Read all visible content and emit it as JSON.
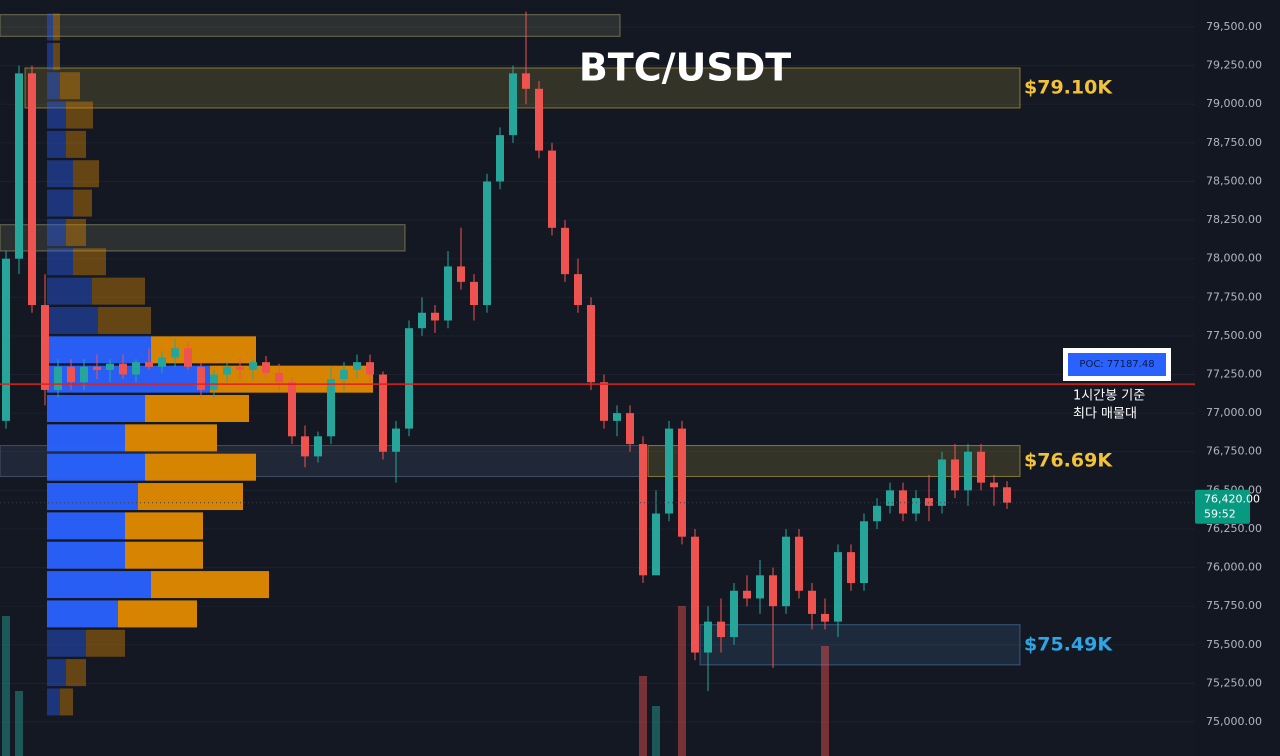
{
  "chart_data": {
    "type": "candlestick",
    "title": "BTC/USDT",
    "ylim": [
      74780,
      79675
    ],
    "yticks": [
      {
        "value": 75000,
        "label": "75,000.00"
      },
      {
        "value": 75250,
        "label": "75,250.00"
      },
      {
        "value": 75500,
        "label": "75,500.00"
      },
      {
        "value": 75750,
        "label": "75,750.00"
      },
      {
        "value": 76000,
        "label": "76,000.00"
      },
      {
        "value": 76250,
        "label": "76,250.00"
      },
      {
        "value": 76500,
        "label": "76,500.00"
      },
      {
        "value": 76750,
        "label": "76,750.00"
      },
      {
        "value": 77000,
        "label": "77,000.00"
      },
      {
        "value": 77250,
        "label": "77,250.00"
      },
      {
        "value": 77500,
        "label": "77,500.00"
      },
      {
        "value": 77750,
        "label": "77,750.00"
      },
      {
        "value": 78000,
        "label": "78,000.00"
      },
      {
        "value": 78250,
        "label": "78,250.00"
      },
      {
        "value": 78500,
        "label": "78,500.00"
      },
      {
        "value": 78750,
        "label": "78,750.00"
      },
      {
        "value": 79000,
        "label": "79,000.00"
      },
      {
        "value": 79250,
        "label": "79,250.00"
      },
      {
        "value": 79500,
        "label": "79,500.00"
      }
    ],
    "grid": true,
    "up_color": "#26a69a",
    "down_color": "#ef5350",
    "open": [
      76950,
      78000,
      79200,
      77700,
      77150,
      77300,
      77200,
      77300,
      77280,
      77320,
      77250,
      77330,
      77300,
      77360,
      77420,
      77300,
      77150,
      77250,
      77300,
      77280,
      77330,
      77260,
      77200,
      76850,
      76720,
      76850,
      77220,
      77280,
      77330,
      77250,
      76750,
      76900,
      77550,
      77650,
      77600,
      77950,
      77850,
      77700,
      78500,
      78800,
      79200,
      79100,
      78700,
      78200,
      77900,
      77700,
      77200,
      76950,
      77000,
      76800,
      75950,
      76350,
      76900,
      76200,
      75450,
      75650,
      75550,
      75850,
      75800,
      75950,
      75750,
      76200,
      75850,
      75700,
      75650,
      76100,
      75900,
      76300,
      76400,
      76500,
      76350,
      76450,
      76400,
      76700,
      76500,
      76750,
      76550,
      76520
    ],
    "high": [
      78050,
      79250,
      79250,
      77900,
      77350,
      77350,
      77350,
      77380,
      77350,
      77380,
      77350,
      77420,
      77400,
      77480,
      77460,
      77330,
      77280,
      77330,
      77360,
      77350,
      77370,
      77320,
      77230,
      76920,
      76880,
      77300,
      77330,
      77380,
      77380,
      77270,
      76950,
      77600,
      77750,
      77700,
      78050,
      78200,
      77900,
      78550,
      78850,
      79250,
      79600,
      79150,
      78750,
      78250,
      78000,
      77750,
      77250,
      77050,
      77050,
      76850,
      76500,
      76950,
      76950,
      76250,
      75750,
      75800,
      75900,
      75950,
      76050,
      76000,
      76250,
      76250,
      75900,
      75800,
      76150,
      76150,
      76350,
      76450,
      76550,
      76550,
      76500,
      76600,
      76750,
      76800,
      76800,
      76800,
      76600,
      76560
    ],
    "low": [
      76900,
      77900,
      77650,
      77050,
      77100,
      77150,
      77150,
      77220,
      77200,
      77220,
      77200,
      77280,
      77260,
      77300,
      77280,
      77100,
      77100,
      77200,
      77220,
      77220,
      77230,
      77150,
      76800,
      76650,
      76680,
      76800,
      77150,
      77230,
      77200,
      76700,
      76550,
      76850,
      77500,
      77520,
      77550,
      77800,
      77600,
      77650,
      78450,
      78750,
      79000,
      78650,
      78150,
      77850,
      77650,
      77150,
      76900,
      76850,
      76750,
      75900,
      75950,
      76300,
      76150,
      75400,
      75200,
      75450,
      75500,
      75750,
      75700,
      75350,
      75700,
      75800,
      75600,
      75600,
      75550,
      75850,
      75850,
      76250,
      76350,
      76300,
      76300,
      76300,
      76350,
      76450,
      76400,
      76500,
      76400,
      76380
    ],
    "close": [
      78000,
      79200,
      77700,
      77150,
      77300,
      77200,
      77300,
      77280,
      77320,
      77250,
      77330,
      77300,
      77360,
      77420,
      77300,
      77150,
      77250,
      77300,
      77280,
      77330,
      77260,
      77200,
      76850,
      76720,
      76850,
      77220,
      77280,
      77330,
      77250,
      76750,
      76900,
      77550,
      77650,
      77600,
      77950,
      77850,
      77700,
      78500,
      78800,
      79200,
      79100,
      78700,
      78200,
      77900,
      77700,
      77200,
      76950,
      77000,
      76800,
      75950,
      76350,
      76900,
      76200,
      75450,
      75650,
      75550,
      75850,
      75800,
      75950,
      75750,
      76200,
      75850,
      75700,
      75650,
      76100,
      75900,
      76300,
      76400,
      76500,
      76350,
      76450,
      76400,
      76700,
      76500,
      76750,
      76550,
      76520,
      76420
    ],
    "volume": [
      140,
      65,
      null,
      null,
      null,
      null,
      null,
      null,
      null,
      null,
      null,
      null,
      null,
      null,
      null,
      null,
      null,
      null,
      null,
      null,
      null,
      null,
      null,
      null,
      null,
      null,
      null,
      null,
      null,
      null,
      null,
      null,
      null,
      null,
      null,
      null,
      null,
      null,
      null,
      null,
      null,
      null,
      null,
      null,
      null,
      null,
      null,
      null,
      null,
      80,
      50,
      null,
      150,
      null,
      null,
      null,
      null,
      null,
      null,
      null,
      null,
      null,
      null,
      110,
      null,
      null,
      null,
      null,
      null,
      null,
      null,
      null,
      null,
      null,
      null,
      null,
      null,
      null
    ],
    "volume_profile": {
      "levels": [
        79500,
        79310,
        79120,
        78930,
        78740,
        78550,
        78360,
        78170,
        77980,
        77790,
        77600,
        77410,
        77220,
        77030,
        76840,
        76650,
        76460,
        76270,
        76080,
        75890,
        75700,
        75510,
        75320,
        75130
      ],
      "buy": [
        6,
        6,
        13,
        19,
        19,
        26,
        26,
        19,
        26,
        45,
        51,
        104,
        163,
        98,
        78,
        98,
        91,
        78,
        78,
        104,
        71,
        39,
        19,
        13
      ],
      "sell": [
        7,
        7,
        20,
        27,
        20,
        26,
        19,
        20,
        33,
        53,
        53,
        105,
        163,
        104,
        92,
        111,
        105,
        78,
        78,
        118,
        79,
        39,
        20,
        13
      ],
      "buy_color": "#2962ff",
      "sell_color": "#e08a00",
      "value_area": [
        75700,
        77410
      ]
    },
    "zones": [
      {
        "low": 79440,
        "high": 79580,
        "color": "#a0a070"
      },
      {
        "low": 78976,
        "high": 79235,
        "color": "#c8b040",
        "label": "$79.10K"
      },
      {
        "low": 78050,
        "high": 78220,
        "color": "#a0a070"
      },
      {
        "low": 76590,
        "high": 76790,
        "color": "#5a6e90"
      },
      {
        "low": 76590,
        "high": 76790,
        "color": "#c8b040",
        "label": "$76.69K"
      },
      {
        "low": 75370,
        "high": 75630,
        "color": "#4a7fb0",
        "label": "$75.49K"
      }
    ],
    "poc": {
      "value": 77187.48,
      "label": "POC: 77187.48"
    },
    "poc_note": [
      "1시간봉 기준",
      "최다 매물대"
    ],
    "last_price": {
      "value": 76420,
      "label": "76,420.00"
    },
    "countdown": "59:52"
  }
}
